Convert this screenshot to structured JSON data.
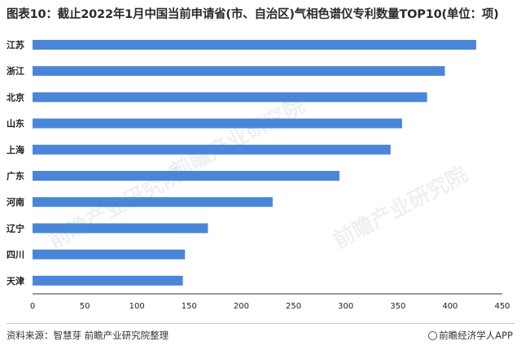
{
  "title": "图表10：截止2022年1月中国当前申请省(市、自治区)气相色谱仪专利数量TOP10(单位：项)",
  "footer": {
    "source": "资料来源：智慧芽 前瞻产业研究院整理",
    "brand": "前瞻经济学人APP"
  },
  "watermark": "前瞻产业研究院",
  "colors": {
    "bar": "#4a86d8",
    "axis": "#333333",
    "text": "#222222"
  },
  "chart_data": {
    "type": "bar",
    "orientation": "horizontal",
    "categories": [
      "江苏",
      "浙江",
      "北京",
      "山东",
      "上海",
      "广东",
      "河南",
      "辽宁",
      "四川",
      "天津"
    ],
    "values": [
      425,
      395,
      378,
      354,
      343,
      294,
      230,
      168,
      146,
      144
    ],
    "xlim": [
      0,
      450
    ],
    "xticks": [
      0,
      50,
      100,
      150,
      200,
      250,
      300,
      350,
      400,
      450
    ],
    "grid": false,
    "legend": "none"
  }
}
